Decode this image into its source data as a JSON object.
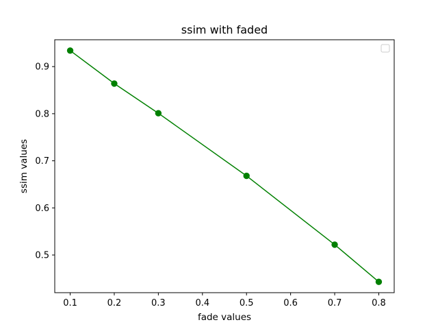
{
  "chart_data": {
    "type": "line",
    "title": "ssim with faded",
    "xlabel": "fade values",
    "ylabel": "ssim values",
    "x": [
      0.1,
      0.2,
      0.3,
      0.5,
      0.7,
      0.8
    ],
    "series": [
      {
        "values": [
          0.934,
          0.864,
          0.801,
          0.668,
          0.522,
          0.443
        ],
        "color": "#008000",
        "marker": "circle"
      }
    ],
    "xlim": [
      0.065,
      0.835
    ],
    "ylim": [
      0.42,
      0.957
    ],
    "xticks": [
      0.1,
      0.2,
      0.3,
      0.4,
      0.5,
      0.6,
      0.7,
      0.8
    ],
    "xtick_labels": [
      "0.1",
      "0.2",
      "0.3",
      "0.4",
      "0.5",
      "0.6",
      "0.7",
      "0.8"
    ],
    "yticks": [
      0.5,
      0.6,
      0.7,
      0.8,
      0.9
    ],
    "ytick_labels": [
      "0.5",
      "0.6",
      "0.7",
      "0.8",
      "0.9"
    ],
    "grid": false,
    "legend": {
      "placement": "top-right",
      "entries": []
    }
  }
}
